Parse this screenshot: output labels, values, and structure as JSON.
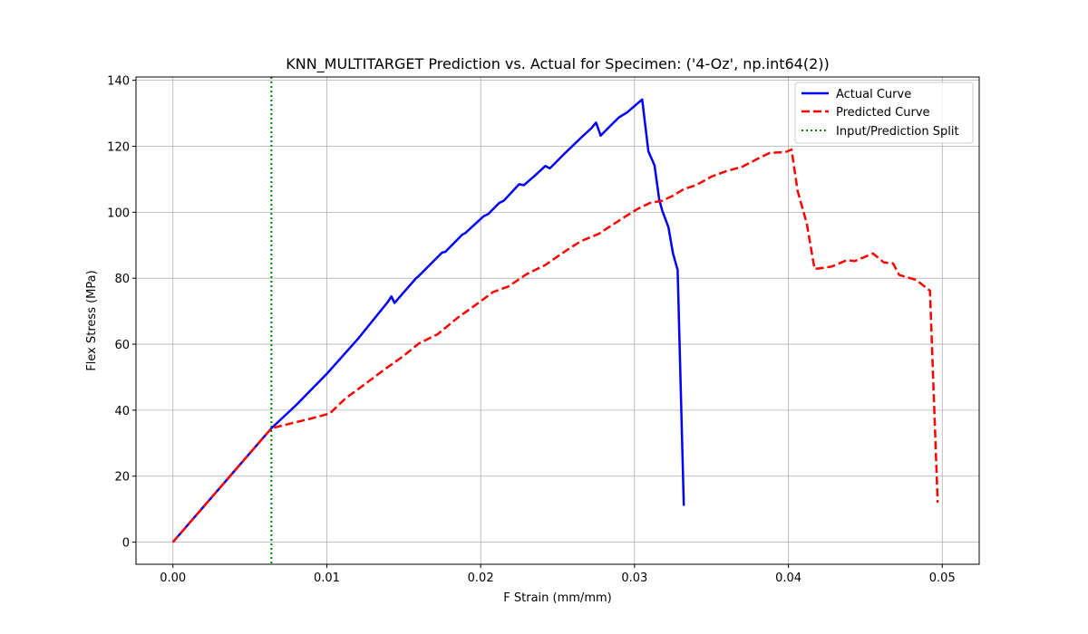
{
  "chart_data": {
    "type": "line",
    "title": "KNN_MULTITARGET Prediction vs. Actual for Specimen: ('4-Oz', np.int64(2))",
    "xlabel": "F Strain (mm/mm)",
    "ylabel": "Flex Stress (MPa)",
    "xlim": [
      -0.0024,
      0.0524
    ],
    "ylim": [
      -6.7,
      141
    ],
    "x_ticks": [
      "0.00",
      "0.01",
      "0.02",
      "0.03",
      "0.04",
      "0.05"
    ],
    "y_ticks": [
      "0",
      "20",
      "40",
      "60",
      "80",
      "100",
      "120",
      "140"
    ],
    "x_tick_values": [
      0,
      0.01,
      0.02,
      0.03,
      0.04,
      0.05
    ],
    "y_tick_values": [
      0,
      20,
      40,
      60,
      80,
      100,
      120,
      140
    ],
    "grid": true,
    "legend_position": "upper right",
    "split_x": 0.0064,
    "series": [
      {
        "name": "Actual Curve",
        "color": "#0000ff",
        "style": "solid",
        "points": [
          [
            0,
            0
          ],
          [
            0.0064,
            34.5
          ],
          [
            0.008,
            41.5
          ],
          [
            0.01,
            51
          ],
          [
            0.012,
            61.5
          ],
          [
            0.014,
            73
          ],
          [
            0.0142,
            74.5
          ],
          [
            0.0144,
            72.5
          ],
          [
            0.0158,
            80
          ],
          [
            0.016,
            80.8
          ],
          [
            0.0175,
            87.8
          ],
          [
            0.0177,
            88
          ],
          [
            0.0188,
            93.2
          ],
          [
            0.019,
            93.7
          ],
          [
            0.0202,
            98.8
          ],
          [
            0.0205,
            99.5
          ],
          [
            0.0212,
            102.8
          ],
          [
            0.0215,
            103.5
          ],
          [
            0.0225,
            108.5
          ],
          [
            0.0228,
            108.2
          ],
          [
            0.0235,
            111
          ],
          [
            0.0242,
            114
          ],
          [
            0.0245,
            113.3
          ],
          [
            0.0255,
            118
          ],
          [
            0.0265,
            122.5
          ],
          [
            0.0272,
            125.5
          ],
          [
            0.0275,
            127.2
          ],
          [
            0.0278,
            123.2
          ],
          [
            0.0285,
            126.5
          ],
          [
            0.029,
            128.8
          ],
          [
            0.0295,
            130.2
          ],
          [
            0.0305,
            134.2
          ],
          [
            0.0309,
            118.5
          ],
          [
            0.0313,
            114.2
          ],
          [
            0.0316,
            104
          ],
          [
            0.0318,
            100.5
          ],
          [
            0.0322,
            95.5
          ],
          [
            0.0325,
            87.5
          ],
          [
            0.0328,
            82.5
          ],
          [
            0.0332,
            11
          ]
        ]
      },
      {
        "name": "Predicted Curve",
        "color": "#ff0000",
        "style": "dashed",
        "points": [
          [
            0,
            0
          ],
          [
            0.0064,
            34.5
          ],
          [
            0.0075,
            35.8
          ],
          [
            0.009,
            37.5
          ],
          [
            0.0102,
            39
          ],
          [
            0.0112,
            43.5
          ],
          [
            0.0125,
            48
          ],
          [
            0.0138,
            52.5
          ],
          [
            0.015,
            56.5
          ],
          [
            0.016,
            60.3
          ],
          [
            0.0172,
            63
          ],
          [
            0.0185,
            68
          ],
          [
            0.0197,
            72
          ],
          [
            0.0208,
            75.8
          ],
          [
            0.0218,
            77.5
          ],
          [
            0.023,
            81.3
          ],
          [
            0.0242,
            84
          ],
          [
            0.0255,
            88.2
          ],
          [
            0.0265,
            91.2
          ],
          [
            0.0277,
            93.5
          ],
          [
            0.029,
            97.5
          ],
          [
            0.0302,
            101
          ],
          [
            0.031,
            102.8
          ],
          [
            0.0318,
            103.5
          ],
          [
            0.0325,
            105
          ],
          [
            0.0332,
            107
          ],
          [
            0.034,
            108.2
          ],
          [
            0.035,
            110.8
          ],
          [
            0.036,
            112.5
          ],
          [
            0.037,
            113.8
          ],
          [
            0.038,
            116.2
          ],
          [
            0.0388,
            118
          ],
          [
            0.0398,
            118.2
          ],
          [
            0.0402,
            119
          ],
          [
            0.0406,
            106.5
          ],
          [
            0.0412,
            96.5
          ],
          [
            0.0417,
            82.8
          ],
          [
            0.0428,
            83.5
          ],
          [
            0.0438,
            85.5
          ],
          [
            0.0443,
            85.2
          ],
          [
            0.0455,
            87.5
          ],
          [
            0.0462,
            84.8
          ],
          [
            0.0468,
            84.5
          ],
          [
            0.0472,
            81
          ],
          [
            0.0483,
            79.5
          ],
          [
            0.0492,
            76.2
          ],
          [
            0.0497,
            12
          ]
        ]
      },
      {
        "name": "Input/Prediction Split",
        "color": "#008000",
        "style": "dotted",
        "vertical_line_x": 0.0064
      }
    ]
  }
}
